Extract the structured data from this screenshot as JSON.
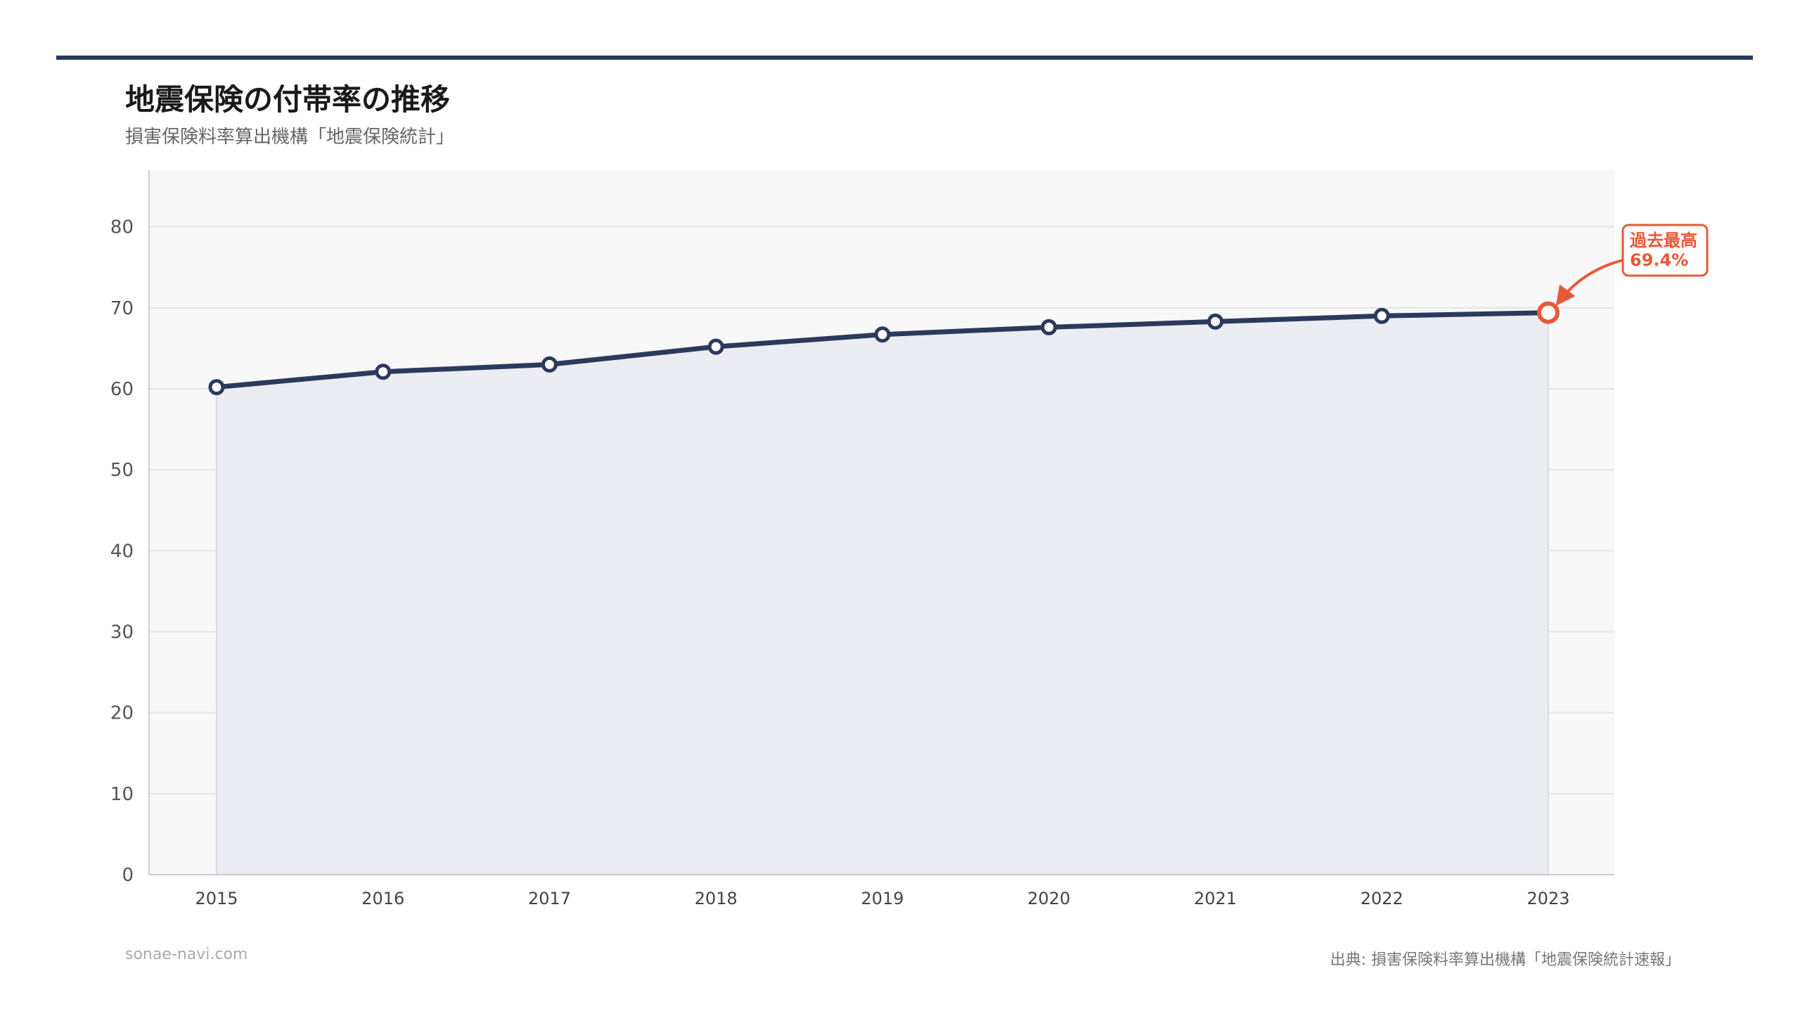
{
  "title": "地震保険の付帯率の推移",
  "subtitle": "損害保険料率算出機構「地震保険統計」",
  "footer": {
    "site": "sonae-navi.com",
    "source": "出典: 損害保険料率算出機構「地震保険統計速報」"
  },
  "colors": {
    "line": "#2b3a5c",
    "area": "#ecedf2",
    "plot_bg": "#f8f8f9",
    "highlight": "#e65a3a"
  },
  "chart_data": {
    "type": "line",
    "x": [
      "2015",
      "2016",
      "2017",
      "2018",
      "2019",
      "2020",
      "2021",
      "2022",
      "2023"
    ],
    "series": [
      {
        "values": [
          60.2,
          62.1,
          63.0,
          65.2,
          66.7,
          67.6,
          68.3,
          69.0,
          69.4
        ]
      }
    ],
    "ylim": [
      0,
      87
    ],
    "yticks": [
      0,
      10,
      20,
      30,
      40,
      50,
      60,
      70,
      80
    ],
    "grid": true,
    "area_fill": true,
    "annotation": {
      "index": 8,
      "line1": "過去最高",
      "line2": "69.4%"
    }
  }
}
